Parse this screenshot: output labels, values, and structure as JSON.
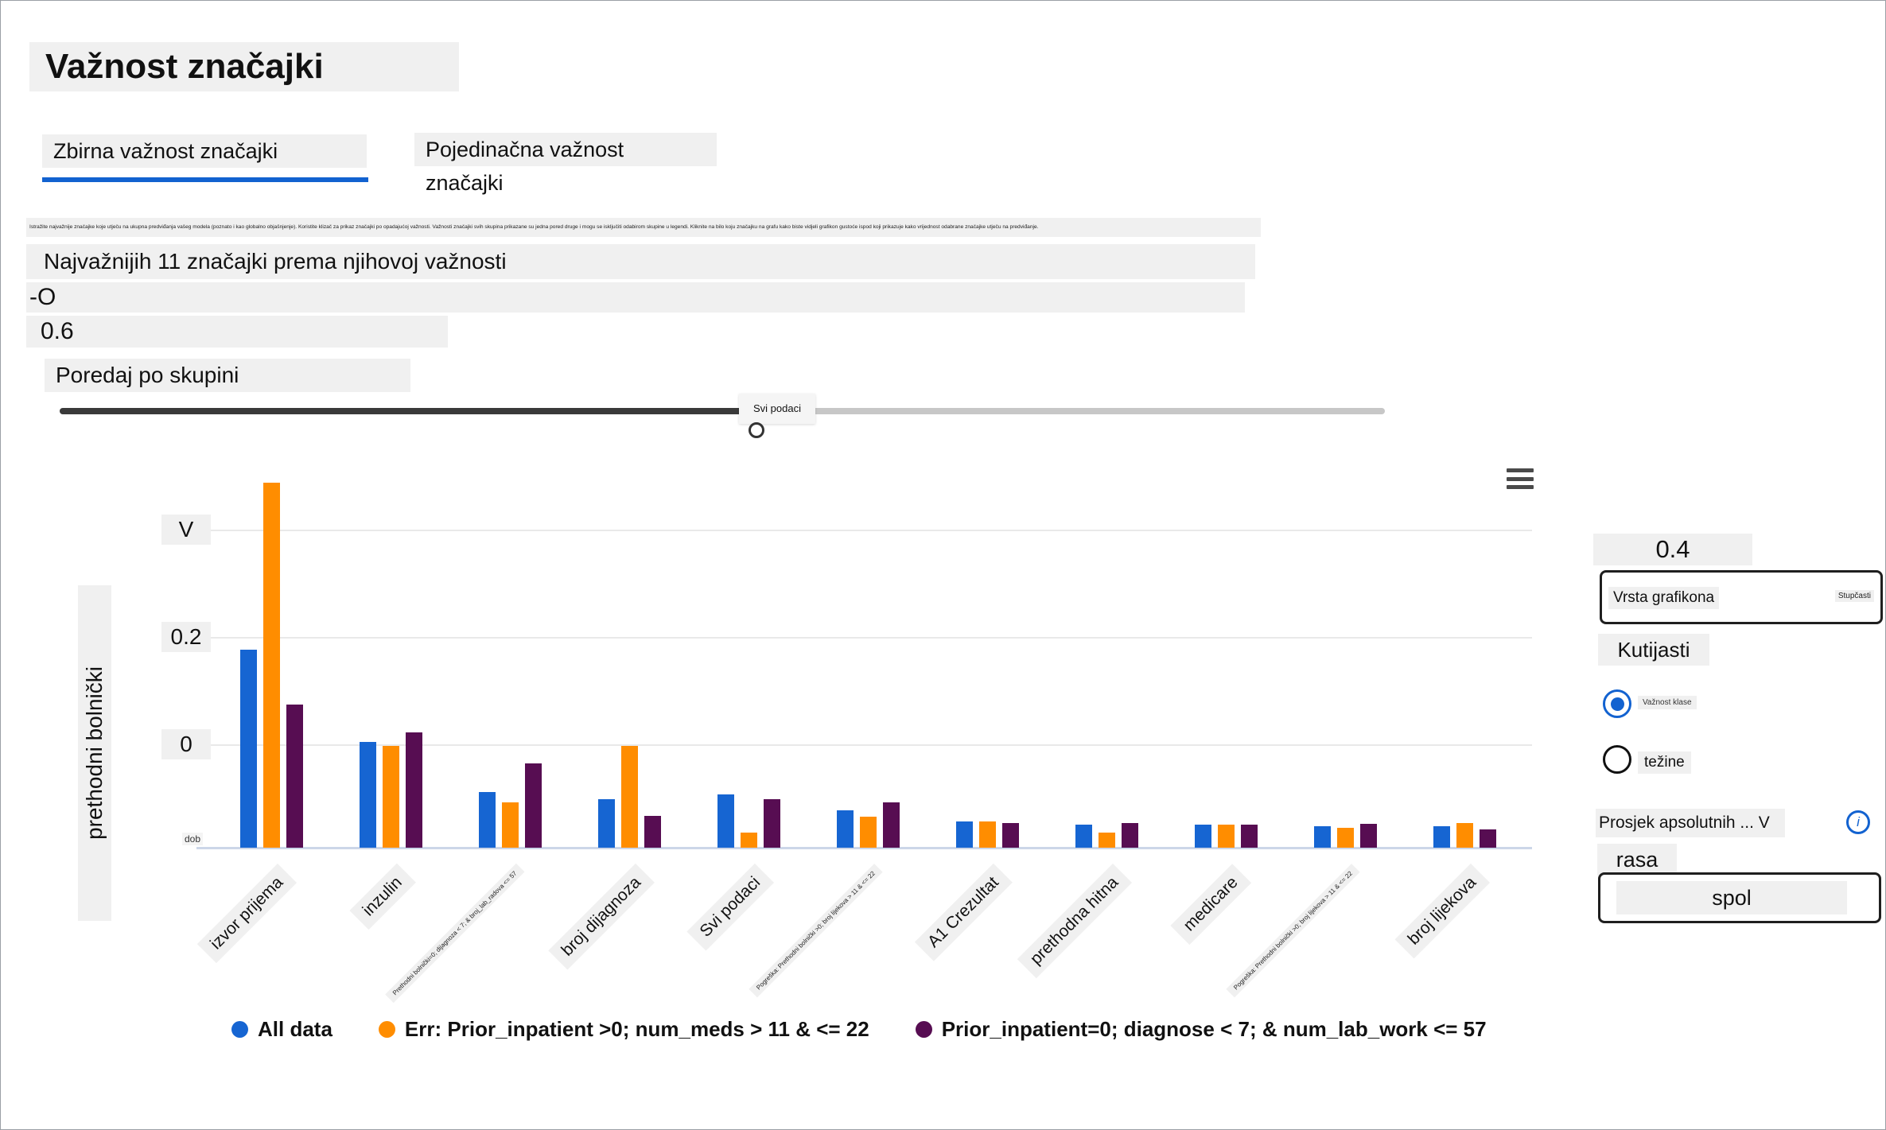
{
  "header": {
    "title": "Važnost značajki",
    "tabs": [
      {
        "label": "Zbirna važnost značajki",
        "active": true
      },
      {
        "label": "Pojedinačna važnost značajki",
        "active": false
      }
    ],
    "description": "Istražite najvažnije značajke koje utječu na ukupna predviđanja vašeg modela (poznato i kao globalno objašnjenje). Koristite klizač za prikaz značajki po opadajućoj važnosti. Važnosti značajki svih skupina prikazane su jedna pored druge i mogu se isključiti odabirom skupine u legendi. Kliknite na bilo koju značajku na grafu kako biste vidjeli grafikon gustoće ispod koji prikazuje kako vrijednost odabrane značajke utječu na predviđanje."
  },
  "controls": {
    "top_features_label": "Najvažnijih 11 značajki prema njihovoj važnosti",
    "range_start": "-O",
    "range_end": "0.6",
    "sort_label": "Poredaj po skupini",
    "slider_value_label": "Svi podaci"
  },
  "chart_data": {
    "type": "bar",
    "title": "",
    "xlabel": "",
    "ylabel": "prethodni bolnički",
    "y_ticks": [
      "V",
      "0.2",
      "0"
    ],
    "baseline_label": "dob",
    "ylim": [
      0,
      0.62
    ],
    "grid": true,
    "legend_position": "bottom",
    "categories": [
      {
        "label": "izvor prijema",
        "small": false
      },
      {
        "label": "inzulin",
        "small": false
      },
      {
        "label": "Prethodni bolnički=0; dijagnoza < 7; & broj_lab_radova <= 57",
        "small": true
      },
      {
        "label": "broj dijagnoza",
        "small": false
      },
      {
        "label": "Svi podaci",
        "small": false
      },
      {
        "label": "Pogreška: Prethodni bolnički >0; broj lijekova > 11 & <= 22",
        "small": true
      },
      {
        "label": "A1 Crezultat",
        "small": false
      },
      {
        "label": "prethodna hitna",
        "small": false
      },
      {
        "label": "medicare",
        "small": false
      },
      {
        "label": "Pogreška: Prethodni bolnički >0; broj lijekova > 11 & <= 22",
        "small": true
      },
      {
        "label": "broj lijekova",
        "small": false
      }
    ],
    "series": [
      {
        "name": "All data",
        "color": "#1665d2",
        "values": [
          0.375,
          0.2,
          0.106,
          0.091,
          0.1,
          0.071,
          0.049,
          0.044,
          0.044,
          0.041,
          0.041
        ]
      },
      {
        "name": "Err: Prior_inpatient >0; num_meds > 11 & <= 22",
        "color": "#ff8d00",
        "values": [
          0.69,
          0.193,
          0.086,
          0.193,
          0.029,
          0.059,
          0.049,
          0.029,
          0.044,
          0.037,
          0.047
        ]
      },
      {
        "name": "Prior_inpatient=0; diagnose < 7; & num_lab_work <= 57",
        "color": "#570d52",
        "values": [
          0.271,
          0.218,
          0.16,
          0.06,
          0.091,
          0.086,
          0.047,
          0.047,
          0.044,
          0.045,
          0.035
        ]
      }
    ]
  },
  "right_panel": {
    "value": "0.4",
    "chart_type_label": "Vrsta grafikona",
    "chart_type_value": "Stupčasti",
    "box_option": "Kutijasti",
    "radios": [
      {
        "label": "Važnost klase",
        "selected": true
      },
      {
        "label": "težine",
        "selected": false
      }
    ],
    "metric_label": "Prosjek apsolutnih ... V",
    "info_glyph": "i",
    "feature_small_label": "rasa",
    "feature_button": "spol"
  },
  "colors": {
    "accent": "#1262d0",
    "bar_blue": "#1665d2",
    "bar_orange": "#ff8d00",
    "bar_purple": "#570d52",
    "slider_dark": "#3a3a3a",
    "slider_light": "#c7c7c7",
    "label_bg": "#f0f0f0",
    "gridline": "#e9e9e9",
    "baseline": "#ccd6e8"
  }
}
